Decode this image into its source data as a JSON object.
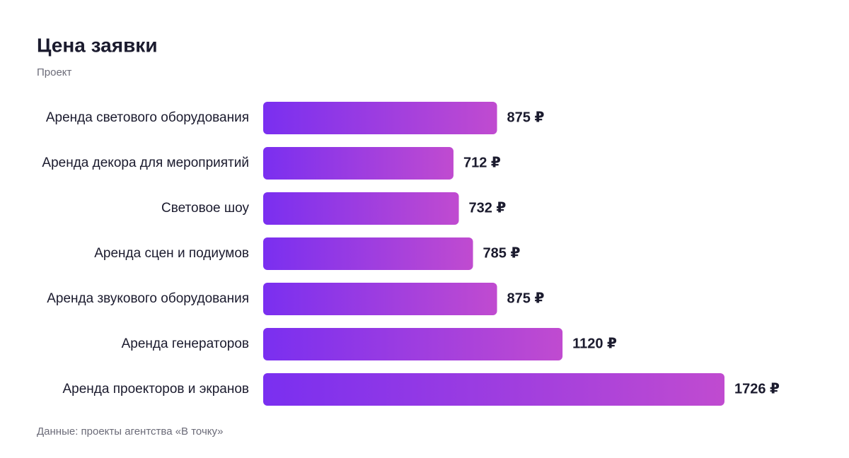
{
  "chart_data": {
    "type": "barh",
    "title": "Цена заявки",
    "subtitle": "Проект",
    "categories": [
      "Аренда светового оборудования",
      "Аренда декора для мероприятий",
      "Световое шоу",
      "Аренда сцен и подиумов",
      "Аренда звукового оборудования",
      "Аренда генераторов",
      "Аренда проекторов и экранов"
    ],
    "values": [
      875,
      712,
      732,
      785,
      875,
      1120,
      1726
    ],
    "value_labels": [
      "875 ₽",
      "712 ₽",
      "732 ₽",
      "785 ₽",
      "875 ₽",
      "1120 ₽",
      "1726 ₽"
    ],
    "gradient": [
      "#7a2ff0",
      "#c04bd0"
    ],
    "source": "Данные: проекты агентства «В точку»"
  }
}
